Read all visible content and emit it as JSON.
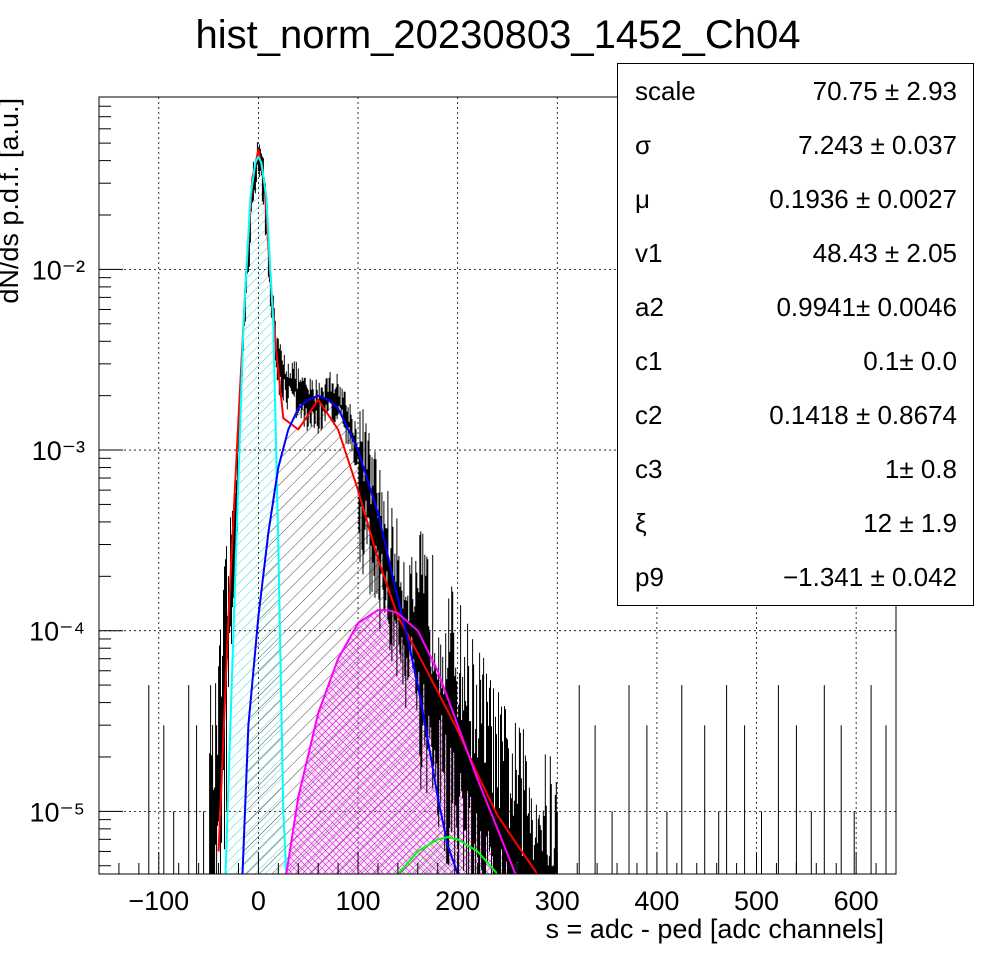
{
  "chart_data": {
    "type": "histogram",
    "title": "hist_norm_20230803_1452_Ch04",
    "xlabel": "s = adc - ped [adc channels]",
    "ylabel": "dN/ds p.d.f. [a.u.]",
    "xlim": [
      -160,
      640
    ],
    "ylim": [
      4.5e-06,
      0.09
    ],
    "yscale": "log",
    "grid": true,
    "x_ticks": [
      "−100",
      "0",
      "100",
      "200",
      "300",
      "400",
      "500",
      "600"
    ],
    "y_ticks": [
      "10⁻⁵",
      "10⁻⁴",
      "10⁻³",
      "10⁻²"
    ],
    "histogram_envelope": {
      "x": [
        -50,
        -40,
        -30,
        -20,
        -12,
        -6,
        0,
        6,
        12,
        18,
        25,
        35,
        45,
        55,
        65,
        75,
        85,
        95,
        105,
        115,
        125,
        135,
        145,
        155,
        165,
        175,
        185,
        195,
        205,
        215,
        225,
        240,
        260,
        280,
        300
      ],
      "y": [
        5e-06,
        2e-05,
        0.00012,
        0.0012,
        0.009,
        0.03,
        0.045,
        0.03,
        0.009,
        0.0035,
        0.0027,
        0.0025,
        0.002,
        0.0019,
        0.002,
        0.0022,
        0.0018,
        0.0013,
        0.0008,
        0.0005,
        0.00035,
        0.00022,
        0.00015,
        0.00012,
        9e-05,
        7e-05,
        5.5e-05,
        4.5e-05,
        3.5e-05,
        2.5e-05,
        2e-05,
        1.2e-05,
        8e-06,
        6e-06,
        5e-06
      ]
    },
    "series": [
      {
        "color": "#ff0000",
        "x": [
          -40,
          -30,
          -20,
          -12,
          -6,
          0,
          6,
          12,
          18,
          25,
          40,
          60,
          80,
          100,
          120,
          140,
          160,
          180,
          200,
          220,
          240,
          260,
          280
        ],
        "y": [
          6e-06,
          0.00012,
          0.0015,
          0.01,
          0.032,
          0.046,
          0.03,
          0.009,
          0.0035,
          0.0015,
          0.0013,
          0.0019,
          0.0013,
          0.0006,
          0.00025,
          0.00012,
          7.5e-05,
          4.6e-05,
          2.8e-05,
          1.6e-05,
          9.5e-06,
          6.5e-06,
          4.5e-06
        ]
      },
      {
        "color": "#00ffff",
        "x": [
          -33,
          -25,
          -15,
          -8,
          -3,
          0,
          3,
          8,
          15,
          20,
          25,
          28
        ],
        "y": [
          4.5e-06,
          0.0001,
          0.005,
          0.025,
          0.039,
          0.042,
          0.039,
          0.025,
          0.005,
          0.0003,
          1e-05,
          4.5e-06
        ]
      },
      {
        "color": "#0000ff",
        "x": [
          -16,
          -10,
          0,
          10,
          20,
          30,
          40,
          50,
          60,
          70,
          80,
          100,
          120,
          140,
          150,
          160,
          170,
          180,
          190,
          200
        ],
        "y": [
          4.5e-06,
          3e-05,
          0.00012,
          0.00035,
          0.0008,
          0.0013,
          0.0017,
          0.0019,
          0.002,
          0.0019,
          0.0017,
          0.001,
          0.00045,
          0.00015,
          9e-05,
          5e-05,
          2.5e-05,
          1.2e-05,
          6.5e-06,
          4.5e-06
        ]
      },
      {
        "color": "#ff00ff",
        "x": [
          28,
          40,
          60,
          80,
          100,
          120,
          130,
          140,
          160,
          180,
          200,
          220,
          240,
          250,
          258
        ],
        "y": [
          4.5e-06,
          1.2e-05,
          3.5e-05,
          7e-05,
          0.00011,
          0.00013,
          0.00013,
          0.000125,
          0.0001,
          6e-05,
          3e-05,
          1.5e-05,
          8e-06,
          5.8e-06,
          4.5e-06
        ]
      },
      {
        "color": "#00ff00",
        "x": [
          140,
          160,
          180,
          190,
          200,
          220,
          240
        ],
        "y": [
          4.5e-06,
          6e-06,
          7e-06,
          7.2e-06,
          7e-06,
          6e-06,
          4.5e-06
        ]
      }
    ]
  },
  "stats": {
    "rows": [
      {
        "name": "scale",
        "value": "70.75 ± 2.93"
      },
      {
        "name": "σ",
        "value": "7.243 ± 0.037"
      },
      {
        "name": "μ",
        "value": "0.1936 ± 0.0027"
      },
      {
        "name": "v1",
        "value": "48.43 ± 2.05"
      },
      {
        "name": "a2",
        "value": "0.9941± 0.0046"
      },
      {
        "name": "c1",
        "value": "0.1± 0.0"
      },
      {
        "name": "c2",
        "value": "0.1418 ± 0.8674"
      },
      {
        "name": "c3",
        "value": "1± 0.8"
      },
      {
        "name": "ξ",
        "value": "12 ± 1.9"
      },
      {
        "name": "p9",
        "value": "−1.341 ± 0.042"
      }
    ]
  }
}
